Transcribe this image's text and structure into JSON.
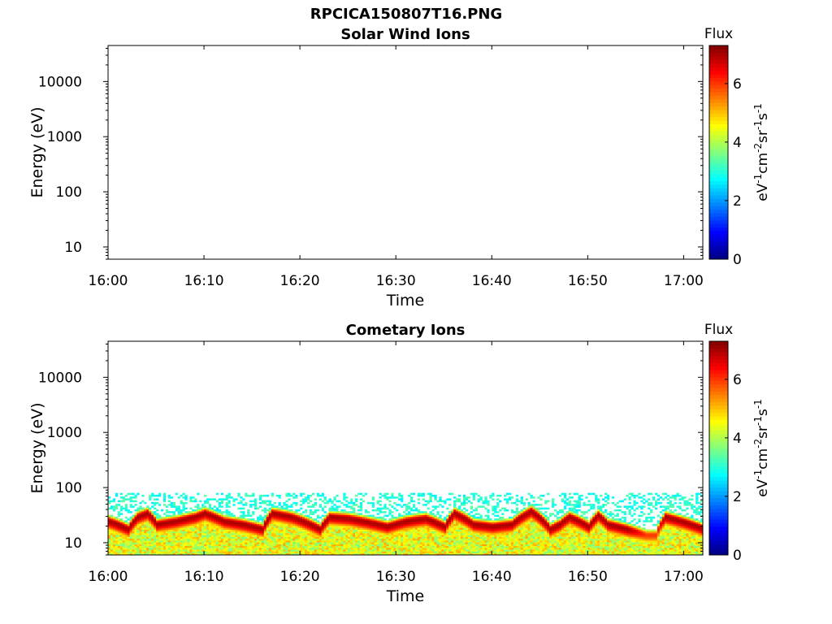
{
  "figure_title": "RPCICA150807T16.PNG",
  "colors": {
    "colormap": [
      "#00007f",
      "#0000ff",
      "#007fff",
      "#00ffff",
      "#7fff7f",
      "#ffff00",
      "#ff7f00",
      "#ff0000",
      "#7f0000"
    ]
  },
  "chart_data": [
    {
      "type": "heatmap",
      "title": "Solar Wind Ions",
      "xlabel": "Time",
      "ylabel": "Energy (eV)",
      "y_scale": "log",
      "ylim": [
        6,
        45000
      ],
      "x_ticks": [
        "16:00",
        "16:10",
        "16:20",
        "16:30",
        "16:40",
        "16:50",
        "17:00"
      ],
      "xlim": [
        "16:00",
        "17:02"
      ],
      "y_ticks": [
        "10",
        "100",
        "1000",
        "10000"
      ],
      "colorbar": {
        "label": "Flux",
        "units": "eV-1cm-2sr-1s-1",
        "range": [
          0,
          7.3
        ],
        "ticks": [
          "0",
          "2",
          "4",
          "6"
        ]
      },
      "data": []
    },
    {
      "type": "heatmap",
      "title": "Cometary Ions",
      "xlabel": "Time",
      "ylabel": "Energy (eV)",
      "y_scale": "log",
      "ylim": [
        6,
        45000
      ],
      "x_ticks": [
        "16:00",
        "16:10",
        "16:20",
        "16:30",
        "16:40",
        "16:50",
        "17:00"
      ],
      "xlim": [
        "16:00",
        "17:02"
      ],
      "y_ticks": [
        "10",
        "100",
        "1000",
        "10000"
      ],
      "colorbar": {
        "label": "Flux",
        "units": "eV-1cm-2sr-1s-1",
        "range": [
          0,
          7.3
        ],
        "ticks": [
          "0",
          "2",
          "4",
          "6"
        ]
      },
      "energy_range_with_counts": [
        6,
        80
      ],
      "peak_energy_trace": {
        "time": [
          "16:00",
          "16:02",
          "16:03",
          "16:04",
          "16:05",
          "16:07",
          "16:09",
          "16:10",
          "16:12",
          "16:14",
          "16:16",
          "16:17",
          "16:19",
          "16:21",
          "16:22",
          "16:23",
          "16:25",
          "16:27",
          "16:29",
          "16:31",
          "16:33",
          "16:35",
          "16:36",
          "16:38",
          "16:40",
          "16:42",
          "16:44",
          "16:45",
          "16:46",
          "16:47",
          "16:48",
          "16:50",
          "16:51",
          "16:52",
          "16:54",
          "16:56",
          "16:57",
          "16:58",
          "17:00",
          "17:02"
        ],
        "energy_ev": [
          25,
          18,
          30,
          35,
          22,
          25,
          30,
          35,
          25,
          22,
          18,
          35,
          30,
          22,
          18,
          30,
          28,
          24,
          20,
          25,
          28,
          20,
          35,
          22,
          20,
          22,
          38,
          28,
          18,
          22,
          30,
          20,
          32,
          22,
          18,
          14,
          14,
          30,
          24,
          18
        ],
        "peak_flux": [
          7,
          7,
          7,
          7,
          7,
          7,
          7,
          7,
          7,
          7,
          7,
          7,
          7,
          7,
          7,
          7,
          7,
          7,
          7,
          7,
          7,
          7,
          7,
          7,
          7,
          7,
          7,
          7,
          7,
          7,
          7,
          7,
          7,
          7,
          7,
          6,
          6,
          7,
          7,
          7
        ]
      }
    }
  ]
}
